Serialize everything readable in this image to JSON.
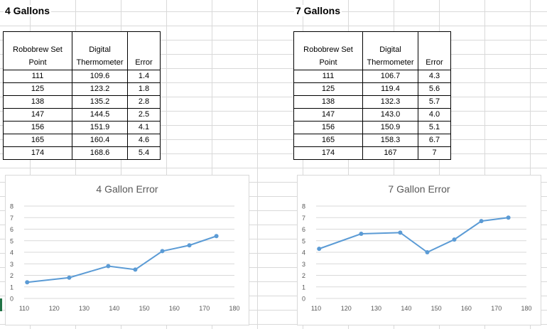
{
  "left": {
    "title": "4 Gallons",
    "headers": [
      "Robobrew Set Point",
      "Digital Thermometer",
      "Error"
    ],
    "rows": [
      [
        "111",
        "109.6",
        "1.4"
      ],
      [
        "125",
        "123.2",
        "1.8"
      ],
      [
        "138",
        "135.2",
        "2.8"
      ],
      [
        "147",
        "144.5",
        "2.5"
      ],
      [
        "156",
        "151.9",
        "4.1"
      ],
      [
        "165",
        "160.4",
        "4.6"
      ],
      [
        "174",
        "168.6",
        "5.4"
      ]
    ]
  },
  "right": {
    "title": "7 Gallons",
    "headers": [
      "Robobrew Set Point",
      "Digital Thermometer",
      "Error"
    ],
    "rows": [
      [
        "111",
        "106.7",
        "4.3"
      ],
      [
        "125",
        "119.4",
        "5.6"
      ],
      [
        "138",
        "132.3",
        "5.7"
      ],
      [
        "147",
        "143.0",
        "4.0"
      ],
      [
        "156",
        "150.9",
        "5.1"
      ],
      [
        "165",
        "158.3",
        "6.7"
      ],
      [
        "174",
        "167",
        "7"
      ]
    ]
  },
  "colors": {
    "series": "#5b9bd5",
    "grid": "#d9d9d9",
    "axis_text": "#595959",
    "title_text": "#595959"
  },
  "chart_data": [
    {
      "type": "line",
      "title": "4 Gallon Error",
      "x": [
        111,
        125,
        138,
        147,
        156,
        165,
        174
      ],
      "series": [
        {
          "values": [
            1.4,
            1.8,
            2.8,
            2.5,
            4.1,
            4.6,
            5.4
          ]
        }
      ],
      "xlim": [
        110,
        180
      ],
      "ylim": [
        0,
        8
      ],
      "xticks": [
        "110",
        "120",
        "130",
        "140",
        "150",
        "160",
        "170",
        "180"
      ],
      "yticks": [
        "0",
        "1",
        "2",
        "3",
        "4",
        "5",
        "6",
        "7",
        "8"
      ],
      "grid": true,
      "legend": "none"
    },
    {
      "type": "line",
      "title": "7 Gallon Error",
      "x": [
        111,
        125,
        138,
        147,
        156,
        165,
        174
      ],
      "series": [
        {
          "values": [
            4.3,
            5.6,
            5.7,
            4.0,
            5.1,
            6.7,
            7.0
          ]
        }
      ],
      "xlim": [
        110,
        180
      ],
      "ylim": [
        0,
        8
      ],
      "xticks": [
        "110",
        "120",
        "130",
        "140",
        "150",
        "160",
        "170",
        "180"
      ],
      "yticks": [
        "0",
        "1",
        "2",
        "3",
        "4",
        "5",
        "6",
        "7",
        "8"
      ],
      "grid": true,
      "legend": "none"
    }
  ]
}
